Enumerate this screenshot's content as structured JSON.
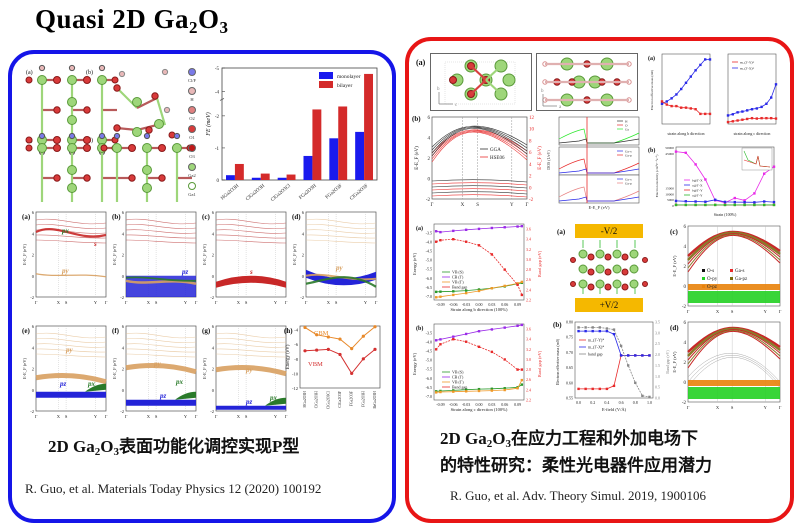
{
  "slide": {
    "title_main": "Quasi 2D Ga",
    "title_sub1": "2",
    "title_mid": "O",
    "title_sub2": "3"
  },
  "left_panel": {
    "border_color": "#1515e8",
    "structure_labels": [
      "(a)",
      "(b)",
      "(c)",
      "(d)"
    ],
    "legend_atoms": [
      "Cl/F",
      "H",
      "O2",
      "O1",
      "O3",
      "Ga2",
      "Ga1"
    ],
    "band_panels": [
      {
        "label": "(a)",
        "annotations": [
          "p_x",
          "s",
          "p_y"
        ]
      },
      {
        "label": "(b)",
        "annotations": [
          "p_z"
        ]
      },
      {
        "label": "(c)",
        "annotations": [
          "s"
        ]
      },
      {
        "label": "(d)",
        "annotations": [
          "p_y"
        ]
      },
      {
        "label": "(e)",
        "annotations": [
          "p_y",
          "p_z",
          "p_x"
        ]
      },
      {
        "label": "(f)",
        "annotations": [
          "p_y",
          "p_z",
          "p_x"
        ]
      },
      {
        "label": "(g)",
        "annotations": [
          "p_y",
          "p_z",
          "p_x"
        ]
      }
    ],
    "band_ylabel": "E-E_F (eV)",
    "band_kpoints": [
      "Γ",
      "X",
      "S",
      "Y",
      "Γ"
    ],
    "band_yticks": [
      "-2",
      "0",
      "2",
      "4",
      "6"
    ],
    "caption_prefix": "2D Ga",
    "caption_sub1": "2",
    "caption_mid": "O",
    "caption_sub2": "3",
    "caption_suffix": "表面功能化调控实现P型",
    "citation": "R. Guo, et al. Materials Today Physics 12 (2020) 100192"
  },
  "right_panel": {
    "border_color": "#e81515",
    "struct_label": "(a)",
    "bands_label": "(b)",
    "bands_legend": [
      "GGA",
      "HSE06"
    ],
    "bands_ylabel_left": "E-E_F (eV)",
    "bands_ylabel_right": "E-E_F (eV)",
    "bands_kpoints": [
      "Γ",
      "X",
      "S",
      "Y",
      "Γ"
    ],
    "dos_legend_1": [
      "H",
      "O",
      "Ga"
    ],
    "dos_legend_2": [
      "Ga-s",
      "Ga-p"
    ],
    "dos_legend_3": [
      "Ga-s",
      "Ga-p"
    ],
    "dos_xlabel": "E-E_F (eV)",
    "dos_ylabel": "DOS (1/eV)",
    "eff_mass_label": "(a)",
    "eff_mass_xlabel_b": "strain along b direction",
    "eff_mass_xlabel_c": "strain along c direction",
    "eff_mass_ylabel": "Electron effective mass (m0)",
    "mobility_label": "(b)",
    "mobility_legend": [
      "b@Γ-X",
      "c@Γ-X",
      "b@Γ-Y",
      "c@Γ-Y"
    ],
    "mobility_xlabel": "Strain (100%)",
    "mobility_ylabel": "Electron mobility (cm²V⁻¹s⁻¹)",
    "field_struct_label": "(a)",
    "field_top": "-V/2",
    "field_bottom": "+V/2",
    "field_bands_c_label": "(c)",
    "field_bands_d_label": "(d)",
    "field_bands_legend": [
      "O-s",
      "Ga-s",
      "O-p_y",
      "Ga-p_z",
      "O-p_z"
    ],
    "strain_b_label": "(a)",
    "strain_b_xlabel": "Strain along b direction (100%)",
    "strain_c_label": "(b)",
    "strain_c_xlabel": "Strain along c direction (100%)",
    "strain_legend": [
      "VB (S)",
      "CB (Γ)",
      "VB (Γ)",
      "Band gap"
    ],
    "strain_ylabel_left": "Energy (eV)",
    "strain_ylabel_right": "Band gap (eV)",
    "efield_label": "(b)",
    "efield_xlabel": "E-field (V/Å)",
    "efield_ylabel_left": "Electron effective mass (m0)",
    "efield_ylabel_right": "Band gap (eV)",
    "efield_legend": [
      "m_(Γ-Y)*",
      "m_(Γ-X)*",
      "band gap"
    ],
    "caption_line1_prefix": "2D Ga",
    "caption_sub1": "2",
    "caption_mid": "O",
    "caption_sub2": "3",
    "caption_line1_suffix": "在应力工程和外加电场下",
    "caption_line2": "的特性研究：柔性光电器件应用潜力",
    "citation": "R. Guo, et al. Adv. Theory Simul. 2019, 1900106"
  },
  "chart_data": [
    {
      "id": "formation-energy",
      "type": "bar",
      "title": "",
      "xlabel": "",
      "ylabel": "FE (meV)",
      "categories": [
        "HGa2O3H",
        "ClGa2O3H",
        "ClGa2O3Cl",
        "FGa2O3H",
        "FGa2O3F",
        "ClGa2O3F"
      ],
      "series": [
        {
          "name": "monolayer",
          "color": "#1a1aee",
          "values": [
            0.15,
            0.07,
            0.07,
            0.75,
            1.3,
            1.5
          ]
        },
        {
          "name": "bilayer",
          "color": "#d42a2a",
          "values": [
            0.5,
            0.2,
            0.17,
            2.2,
            2.4,
            4.6
          ]
        }
      ],
      "yticks": [
        "0",
        "-1",
        "-2",
        "-4",
        "-5"
      ],
      "ylim": [
        0,
        -5
      ],
      "axis_break": true,
      "legend": "top-right"
    },
    {
      "id": "band-edges",
      "type": "line",
      "label": "(h)",
      "ylabel": "Energy (eV)",
      "categories": [
        "HGa2O3H",
        "ClGa2O3H",
        "ClGa2O3Cl",
        "ClGa2O3F",
        "FGa2O3F",
        "FGa2O3H",
        "BrGa2O3H"
      ],
      "series": [
        {
          "name": "CBM",
          "color": "#e8892a",
          "values": [
            -3.7,
            -4.7,
            -5.0,
            -5.3,
            -6.6,
            -4.9,
            -3.6
          ]
        },
        {
          "name": "VBM",
          "color": "#d43030",
          "values": [
            -6.9,
            -6.8,
            -6.7,
            -7.4,
            -10.0,
            -8.0,
            -6.7
          ]
        }
      ],
      "yticks": [
        "-12",
        "-10",
        "-8",
        "-6",
        "-4"
      ],
      "ylim": [
        -12,
        -3.5
      ]
    },
    {
      "id": "eff-mass-b",
      "type": "line",
      "xlabel": "strain along b direction",
      "x": [
        -0.1,
        -0.08,
        -0.06,
        -0.04,
        -0.02,
        0.0,
        0.02,
        0.04,
        0.06,
        0.08,
        0.1
      ],
      "series": [
        {
          "name": "blue",
          "color": "#2a2ae8",
          "values": [
            0.26,
            0.29,
            0.33,
            0.38,
            0.45,
            0.53,
            0.61,
            0.69,
            0.76,
            0.83,
            0.83
          ]
        },
        {
          "name": "red",
          "color": "#e82a2a",
          "values": [
            0.29,
            0.25,
            0.23,
            0.23,
            0.21,
            0.21,
            0.2,
            0.19,
            0.13,
            0.13,
            0.13
          ]
        }
      ],
      "ylim": [
        0.0,
        0.9
      ]
    },
    {
      "id": "eff-mass-c",
      "type": "line",
      "xlabel": "strain along c direction",
      "x": [
        -0.1,
        -0.08,
        -0.06,
        -0.04,
        -0.02,
        0.0,
        0.02,
        0.04,
        0.06,
        0.08,
        0.1
      ],
      "series": [
        {
          "name": "m_(Γ-Y)*",
          "color": "#e82a2a",
          "values": [
            0.45,
            0.47,
            0.49,
            0.51,
            0.53,
            0.55,
            0.54,
            0.55,
            0.55,
            0.55,
            0.54
          ]
        },
        {
          "name": "m_(Γ-X)*",
          "color": "#2a2ae8",
          "values": [
            0.62,
            0.65,
            0.7,
            0.72,
            0.75,
            0.78,
            0.8,
            0.84,
            0.92,
            1.08,
            1.42
          ]
        }
      ],
      "ylim": [
        0.4,
        2.2
      ]
    },
    {
      "id": "mobility",
      "type": "line",
      "xlabel": "Strain (100%)",
      "x": [
        -0.1,
        -0.08,
        -0.06,
        -0.04,
        -0.02,
        0.0,
        0.02,
        0.04,
        0.06,
        0.08,
        0.1
      ],
      "series": [
        {
          "name": "b@Γ-X",
          "color": "#e82ae8",
          "values": [
            46000,
            45000,
            35000,
            22000,
            4000,
            2000,
            6000,
            4000,
            10000,
            27000,
            33000
          ]
        },
        {
          "name": "c@Γ-X",
          "color": "#2a2ae8",
          "values": [
            3500,
            3200,
            3000,
            2800,
            4500,
            2700,
            2500,
            2400,
            2300,
            3000,
            2500
          ]
        },
        {
          "name": "b@Γ-Y",
          "color": "#e82a2a",
          "values": [
            100,
            100,
            100,
            100,
            100,
            100,
            100,
            100,
            100,
            100,
            100
          ]
        },
        {
          "name": "c@Γ-Y",
          "color": "#2ab82a",
          "values": [
            50,
            50,
            50,
            50,
            50,
            50,
            50,
            50,
            50,
            50,
            50
          ]
        }
      ],
      "yticks": [
        "0",
        "5000",
        "10000",
        "15000",
        "45000",
        "50000"
      ],
      "ylim": [
        0,
        50000
      ]
    },
    {
      "id": "strain-b",
      "type": "line",
      "xlabel": "Strain along b direction (100%)",
      "x": [
        -0.1,
        -0.09,
        -0.06,
        -0.03,
        0.0,
        0.03,
        0.06,
        0.09,
        0.1
      ],
      "xticks": [
        "-0.09",
        "-0.06",
        "-0.03",
        "0.00",
        "0.03",
        "0.06",
        "0.09"
      ],
      "yticks_left": [
        "-7.0",
        "-6.5",
        "-6.0",
        "-5.5",
        "-5.0",
        "-4.5",
        "-4.0",
        "-3.5",
        "-3.0"
      ],
      "yticks_right": [
        "2.2",
        "2.4",
        "2.6",
        "2.8",
        "3.0",
        "3.2",
        "3.4",
        "3.6"
      ],
      "series": [
        {
          "name": "VB (S)",
          "color": "#2a9a2a",
          "axis": "left",
          "values": [
            -6.75,
            -6.74,
            -6.72,
            -6.68,
            -6.62,
            -6.55,
            -6.45,
            -6.3,
            -6.25
          ]
        },
        {
          "name": "CB (Γ)",
          "color": "#9a2ae8",
          "axis": "left",
          "values": [
            -3.4,
            -3.45,
            -3.38,
            -3.32,
            -3.27,
            -3.22,
            -3.18,
            -3.14,
            -3.12
          ]
        },
        {
          "name": "VB (Γ)",
          "color": "#f09a2a",
          "axis": "left",
          "values": [
            -7.05,
            -7.02,
            -6.92,
            -6.82,
            -6.7,
            -6.55,
            -6.42,
            -6.28,
            -6.2
          ]
        },
        {
          "name": "Band gap",
          "color": "#e82a2a",
          "axis": "right",
          "values": [
            3.35,
            3.38,
            3.4,
            3.35,
            3.28,
            3.1,
            2.8,
            2.5,
            2.3
          ]
        }
      ]
    },
    {
      "id": "strain-c",
      "type": "line",
      "xlabel": "Strain along c direction (100%)",
      "x": [
        -0.1,
        -0.09,
        -0.06,
        -0.03,
        0.0,
        0.03,
        0.06,
        0.09,
        0.1
      ],
      "xticks": [
        "-0.09",
        "-0.06",
        "-0.03",
        "0.00",
        "0.03",
        "0.06",
        "0.09"
      ],
      "series": [
        {
          "name": "VB (S)",
          "color": "#2a9a2a",
          "axis": "left",
          "values": [
            -6.72,
            -6.7,
            -6.67,
            -6.63,
            -6.6,
            -6.58,
            -6.55,
            -6.5,
            -6.35
          ]
        },
        {
          "name": "CB (Γ)",
          "color": "#9a2ae8",
          "axis": "left",
          "values": [
            -3.9,
            -3.85,
            -3.7,
            -3.55,
            -3.4,
            -3.3,
            -3.2,
            -3.1,
            -3.05
          ]
        },
        {
          "name": "VB (Γ)",
          "color": "#f09a2a",
          "axis": "left",
          "values": [
            -6.78,
            -6.76,
            -6.74,
            -6.72,
            -6.7,
            -6.68,
            -6.65,
            -6.55,
            -6.1
          ]
        },
        {
          "name": "Band gap",
          "color": "#e82a2a",
          "axis": "right",
          "values": [
            3.2,
            3.3,
            3.4,
            3.35,
            3.25,
            3.15,
            3.0,
            2.8,
            2.8
          ]
        }
      ]
    },
    {
      "id": "efield",
      "type": "line",
      "xlabel": "E-field (V/Å)",
      "x": [
        0.0,
        0.1,
        0.2,
        0.3,
        0.4,
        0.5,
        0.6,
        0.7,
        0.8,
        0.9,
        1.0
      ],
      "yticks_left": [
        "0.55",
        "0.60",
        "0.65",
        "0.70",
        "0.75",
        "0.80"
      ],
      "yticks_right": [
        "0.0",
        "0.5",
        "1.0",
        "1.5",
        "2.0",
        "2.5",
        "3.0",
        "3.5"
      ],
      "series": [
        {
          "name": "m_(Γ-Y)*",
          "color": "#e82a2a",
          "axis": "left",
          "values": [
            0.58,
            0.58,
            0.58,
            0.58,
            0.58,
            0.59,
            0.69,
            0.69,
            0.69,
            0.69,
            0.69
          ]
        },
        {
          "name": "m_(Γ-X)*",
          "color": "#2a2ae8",
          "axis": "left",
          "values": [
            0.77,
            0.77,
            0.77,
            0.77,
            0.77,
            0.76,
            0.69,
            0.69,
            0.69,
            0.69,
            0.69
          ]
        },
        {
          "name": "band gap",
          "color": "#888888",
          "axis": "right",
          "values": [
            3.25,
            3.25,
            3.25,
            3.25,
            3.2,
            3.15,
            2.4,
            1.5,
            0.7,
            0.1,
            0.05
          ]
        }
      ]
    }
  ]
}
